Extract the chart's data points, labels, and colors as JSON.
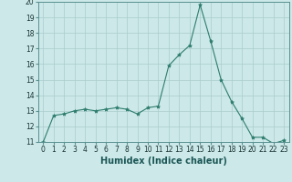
{
  "x": [
    0,
    1,
    2,
    3,
    4,
    5,
    6,
    7,
    8,
    9,
    10,
    11,
    12,
    13,
    14,
    15,
    16,
    17,
    18,
    19,
    20,
    21,
    22,
    23
  ],
  "y": [
    11.0,
    12.7,
    12.8,
    13.0,
    13.1,
    13.0,
    13.1,
    13.2,
    13.1,
    12.8,
    13.2,
    13.3,
    15.9,
    16.6,
    17.2,
    19.8,
    17.5,
    15.0,
    13.6,
    12.5,
    11.3,
    11.3,
    10.9,
    11.1
  ],
  "xlabel": "Humidex (Indice chaleur)",
  "line_color": "#2e7d6e",
  "marker": "*",
  "bg_color": "#cce8e8",
  "grid_color": "#aacccc",
  "ylim": [
    11,
    20
  ],
  "xlim_min": -0.5,
  "xlim_max": 23.5,
  "yticks": [
    11,
    12,
    13,
    14,
    15,
    16,
    17,
    18,
    19,
    20
  ],
  "xticks": [
    0,
    1,
    2,
    3,
    4,
    5,
    6,
    7,
    8,
    9,
    10,
    11,
    12,
    13,
    14,
    15,
    16,
    17,
    18,
    19,
    20,
    21,
    22,
    23
  ],
  "xlabel_fontsize": 7,
  "tick_fontsize": 5.5
}
